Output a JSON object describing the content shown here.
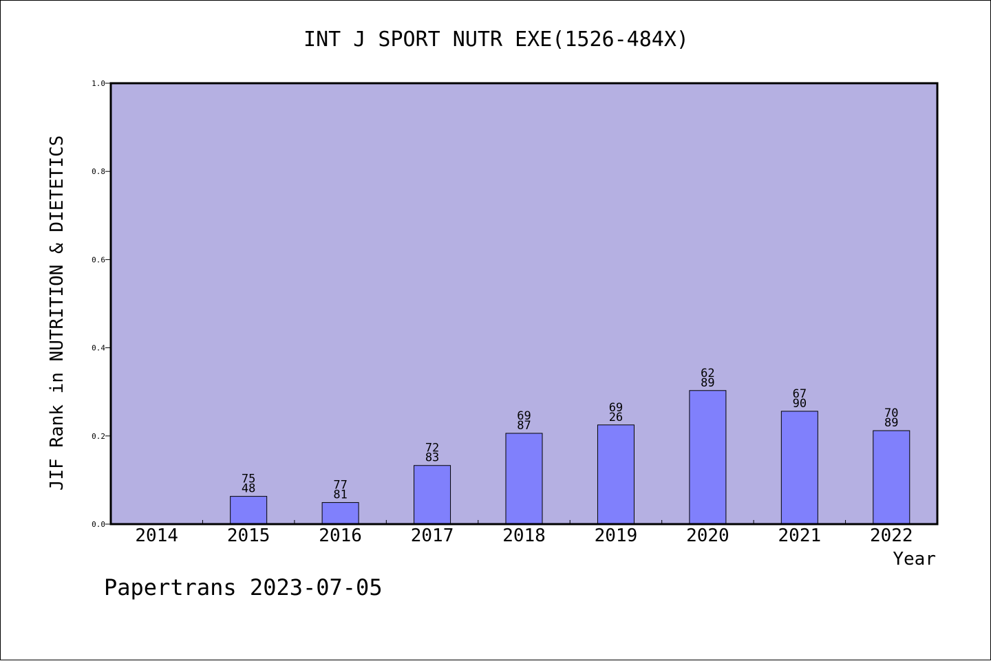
{
  "chart_data": {
    "type": "bar",
    "title": "INT J SPORT NUTR EXE(1526-484X)",
    "xlabel": "Year",
    "ylabel": "JIF Rank in NUTRITION & DIETETICS",
    "footer": "Papertrans 2023-07-05",
    "ylim": [
      0.0,
      1.0
    ],
    "yticks": [
      "0.0",
      "0.2",
      "0.4",
      "0.6",
      "0.8",
      "1.0"
    ],
    "grid": false,
    "legend": "none",
    "colors": {
      "plot_bg": "#b5b0e2",
      "bar": "#8080fc",
      "bar_edge": "#000000"
    },
    "categories": [
      "2014",
      "2015",
      "2016",
      "2017",
      "2018",
      "2019",
      "2020",
      "2021",
      "2022"
    ],
    "values": [
      null,
      0.063,
      0.049,
      0.133,
      0.206,
      0.225,
      0.303,
      0.256,
      0.212
    ],
    "labels": [
      null,
      [
        "75",
        "48"
      ],
      [
        "77",
        "81"
      ],
      [
        "72",
        "83"
      ],
      [
        "69",
        "87"
      ],
      [
        "69",
        "26"
      ],
      [
        "62",
        "89"
      ],
      [
        "67",
        "90"
      ],
      [
        "70",
        "89"
      ]
    ]
  }
}
